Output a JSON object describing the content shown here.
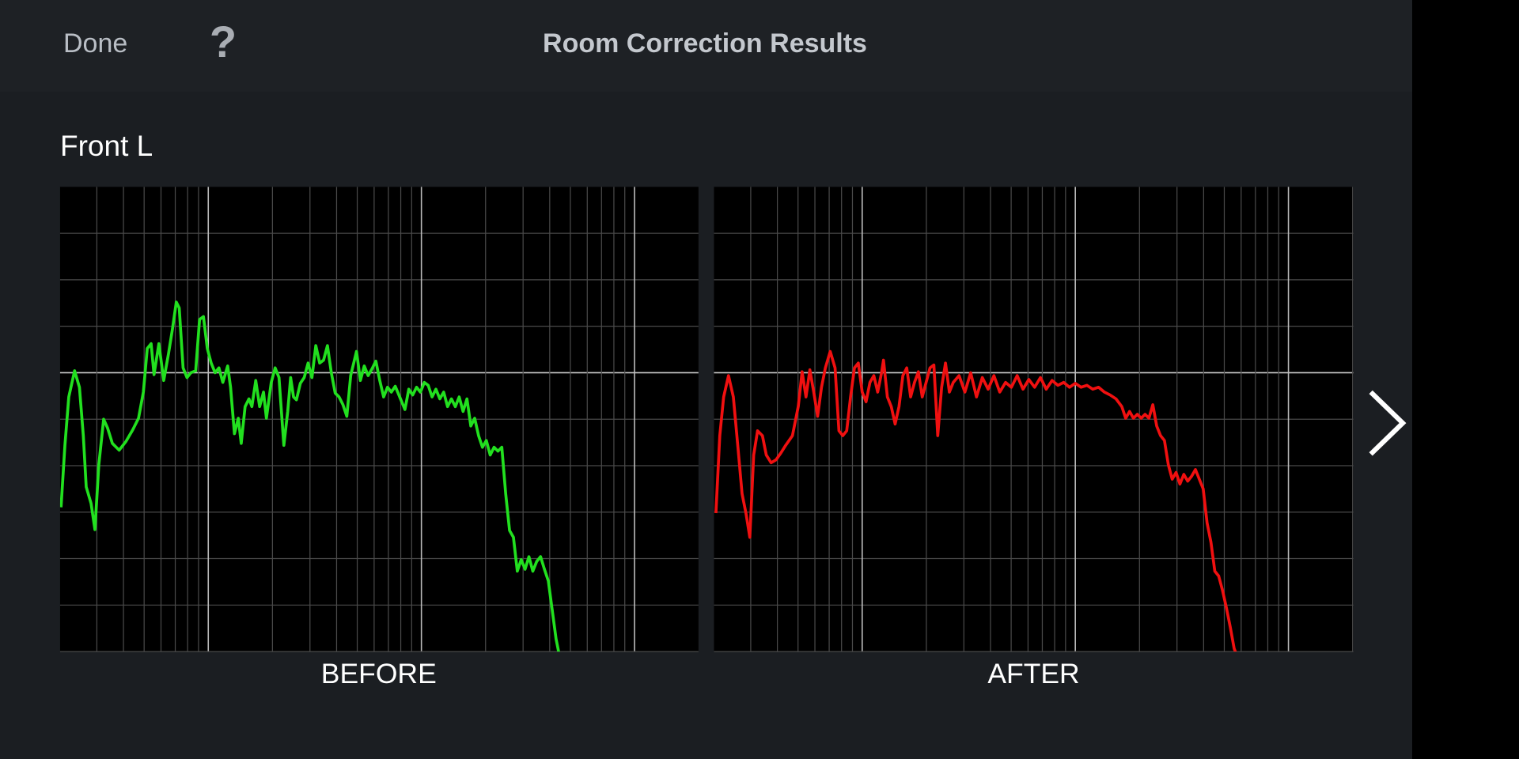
{
  "header": {
    "done": "Done",
    "help": "?",
    "title": "Room Correction Results"
  },
  "section": {
    "label": "Front L"
  },
  "charts": [
    {
      "label": "BEFORE"
    },
    {
      "label": "AFTER"
    }
  ]
}
